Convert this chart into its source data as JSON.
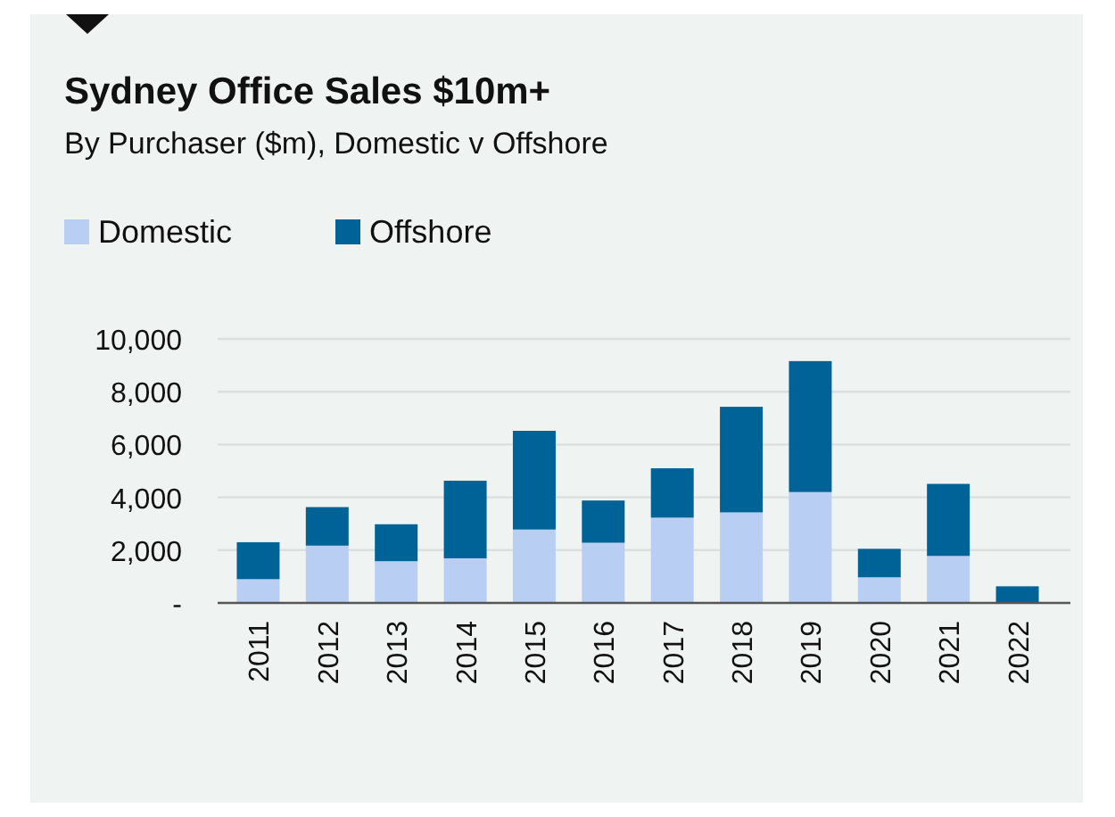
{
  "chart_data": {
    "type": "bar",
    "title": "Sydney Office Sales $10m+",
    "subtitle": "By Purchaser ($m), Domestic v Offshore",
    "categories": [
      "2011",
      "2012",
      "2013",
      "2014",
      "2015",
      "2016",
      "2017",
      "2018",
      "2019",
      "2020",
      "2021",
      "2022"
    ],
    "series": [
      {
        "name": "Domestic",
        "color": "#b9cef3",
        "values": [
          900,
          2170,
          1580,
          1690,
          2780,
          2280,
          3230,
          3430,
          4200,
          970,
          1780,
          0
        ]
      },
      {
        "name": "Offshore",
        "color": "#006397",
        "values": [
          1400,
          1460,
          1400,
          2940,
          3740,
          1600,
          1870,
          4000,
          4960,
          1080,
          2730,
          630
        ]
      }
    ],
    "stacked": true,
    "ylim": [
      0,
      10000
    ],
    "yticks": [
      {
        "value": 0,
        "label": "-"
      },
      {
        "value": 2000,
        "label": "2,000"
      },
      {
        "value": 4000,
        "label": "4,000"
      },
      {
        "value": 6000,
        "label": "6,000"
      },
      {
        "value": 8000,
        "label": "8,000"
      },
      {
        "value": 10000,
        "label": "10,000"
      }
    ],
    "grid": "y",
    "legend": "top left"
  }
}
